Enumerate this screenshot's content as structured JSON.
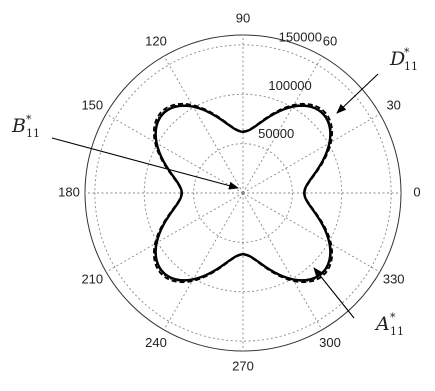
{
  "chart_data": {
    "type": "polar-line",
    "angle_unit": "degrees",
    "angle_ticks": [
      0,
      30,
      60,
      90,
      120,
      150,
      180,
      210,
      240,
      270,
      300,
      330
    ],
    "angle_tick_labels": [
      "0",
      "30",
      "60",
      "90",
      "120",
      "150",
      "180",
      "210",
      "240",
      "270",
      "300",
      "330"
    ],
    "radial_ticks": [
      50000,
      100000,
      150000
    ],
    "radial_tick_labels": [
      "50000",
      "100000",
      "150000"
    ],
    "radial_range": [
      0,
      160000
    ],
    "grid": true,
    "curve_model": {
      "form": "r = mean - amp * cos(4 * theta)",
      "angle_step_deg": 2
    },
    "series": [
      {
        "label_base": "A",
        "label_sup": "*",
        "label_sub": "11",
        "style": "solid",
        "color": "#000000",
        "mean": 88000,
        "amp": 26000
      },
      {
        "label_base": "B",
        "label_sup": "*",
        "label_sub": "11",
        "style": "dotted",
        "color": "#000000",
        "mean": 88500,
        "amp": 26500
      },
      {
        "label_base": "D",
        "label_sup": "*",
        "label_sub": "11",
        "style": "dashed",
        "color": "#000000",
        "mean": 89500,
        "amp": 27000
      }
    ]
  }
}
